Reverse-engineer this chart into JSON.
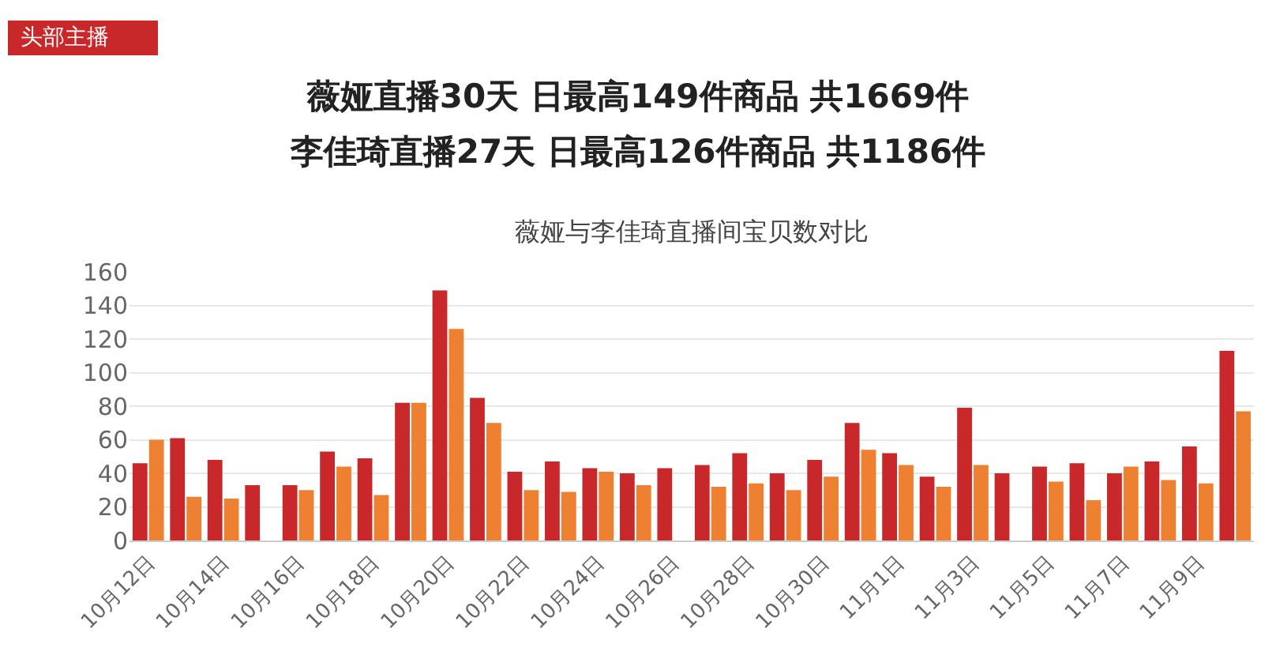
{
  "chart_data": {
    "type": "bar",
    "title": "薇娅直播30天 日最高149件商品 共1669件",
    "subtitle": "李佳琦直播27天 日最高126件商品 共1186件",
    "annotations": [
      "头部主播",
      "薇娅与李佳琦直播间宝贝数对比"
    ],
    "categories": [
      "10月12日",
      null,
      "10月14日",
      null,
      "10月16日",
      null,
      "10月18日",
      null,
      "10月20日",
      null,
      "10月22日",
      null,
      "10月24日",
      null,
      "10月26日",
      null,
      "10月28日",
      null,
      "10月30日",
      null,
      "11月1日",
      null,
      "11月3日",
      null,
      "11月5日",
      null,
      "11月7日",
      null,
      "11月9日",
      null
    ],
    "series": [
      {
        "color": "#c9282a",
        "values": [
          46,
          61,
          48,
          33,
          33,
          53,
          49,
          82,
          149,
          85,
          41,
          47,
          43,
          40,
          43,
          45,
          52,
          40,
          48,
          70,
          52,
          38,
          79,
          40,
          44,
          46,
          40,
          47,
          56,
          113
        ]
      },
      {
        "color": "#ee8131",
        "values": [
          60,
          26,
          25,
          null,
          30,
          44,
          27,
          82,
          126,
          70,
          30,
          29,
          41,
          33,
          null,
          32,
          34,
          30,
          38,
          54,
          45,
          32,
          45,
          null,
          35,
          24,
          44,
          36,
          34,
          77
        ]
      }
    ],
    "ylim": [
      0,
      160
    ],
    "yticks": [
      0,
      20,
      40,
      60,
      80,
      100,
      120,
      140,
      160
    ],
    "grid": "y"
  }
}
